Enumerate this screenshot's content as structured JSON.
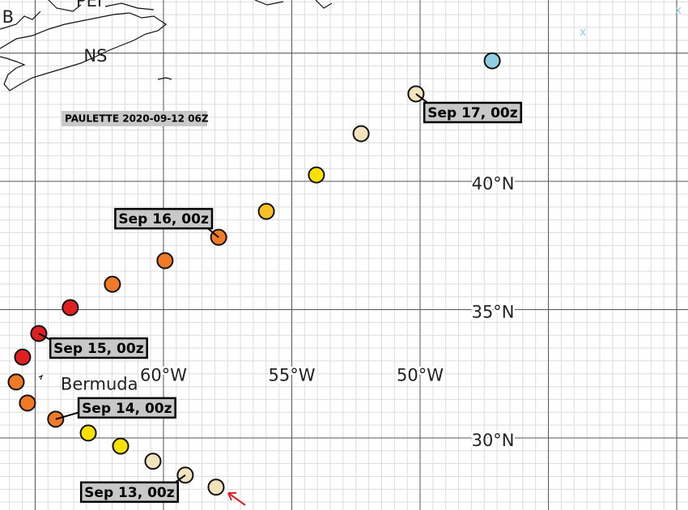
{
  "title": "PAULETTE 2020-09-12 06Z",
  "lon_range": [
    -66.37,
    -39.56
  ],
  "lat_range": [
    47.07,
    27.19
  ],
  "grid_lon": [
    -65,
    -60,
    -55,
    -50,
    -45,
    -40
  ],
  "grid_lat": [
    45,
    40,
    35,
    30
  ],
  "minor_grid_step": 0.5,
  "lon_labels": [
    {
      "value": -60,
      "label": "60°W"
    },
    {
      "value": -55,
      "label": "55°W"
    },
    {
      "value": -50,
      "label": "50°W"
    }
  ],
  "lat_labels": [
    {
      "value": 40,
      "label": "40°N"
    },
    {
      "value": 35,
      "label": "35°N"
    },
    {
      "value": 30,
      "label": "30°N"
    }
  ],
  "places": [
    {
      "name": "Bermuda",
      "lon": -62.5,
      "lat": 32.07
    },
    {
      "name": "NS",
      "lon": -62.65,
      "lat": 44.86
    },
    {
      "name": "PEI",
      "lon": -62.9,
      "lat": 47.0
    },
    {
      "name": "B",
      "lon": -66.06,
      "lat": 46.37
    }
  ],
  "markers": [
    {
      "name": "x",
      "lon": -43.66,
      "lat": 45.8,
      "color": "#8ecfe3"
    },
    {
      "name": "x",
      "lon": -39.94,
      "lat": 46.66,
      "color": "#8ecfe3"
    }
  ],
  "points": [
    {
      "lon": -57.95,
      "lat": 28.08,
      "color": "#f3e3bd"
    },
    {
      "lon": -59.15,
      "lat": 28.55,
      "color": "#f3e3bd",
      "label": "Sep 13, 00z"
    },
    {
      "lon": -60.41,
      "lat": 29.09,
      "color": "#f3e3bd"
    },
    {
      "lon": -61.67,
      "lat": 29.68,
      "color": "#f8e000"
    },
    {
      "lon": -62.93,
      "lat": 30.19,
      "color": "#f8e000"
    },
    {
      "lon": -64.2,
      "lat": 30.73,
      "color": "#f07a26",
      "label": "Sep 14, 00z"
    },
    {
      "lon": -65.3,
      "lat": 31.36,
      "color": "#f07a26"
    },
    {
      "lon": -65.74,
      "lat": 32.18,
      "color": "#f07a26"
    },
    {
      "lon": -65.49,
      "lat": 33.15,
      "color": "#e02020"
    },
    {
      "lon": -64.86,
      "lat": 34.07,
      "color": "#e02020",
      "label": "Sep 15, 00z"
    },
    {
      "lon": -63.63,
      "lat": 35.08,
      "color": "#e02020"
    },
    {
      "lon": -61.99,
      "lat": 35.99,
      "color": "#f07a26"
    },
    {
      "lon": -59.94,
      "lat": 36.91,
      "color": "#f07a26"
    },
    {
      "lon": -57.85,
      "lat": 37.82,
      "color": "#f07a26",
      "label": "Sep 16, 00z"
    },
    {
      "lon": -55.99,
      "lat": 38.83,
      "color": "#f8c020"
    },
    {
      "lon": -54.04,
      "lat": 40.25,
      "color": "#f8e000"
    },
    {
      "lon": -52.3,
      "lat": 41.86,
      "color": "#f3e3bd"
    },
    {
      "lon": -50.16,
      "lat": 43.41,
      "color": "#f3e3bd",
      "label": "Sep 17, 00z"
    },
    {
      "lon": -47.19,
      "lat": 44.7,
      "color": "#8ecfe3"
    }
  ]
}
